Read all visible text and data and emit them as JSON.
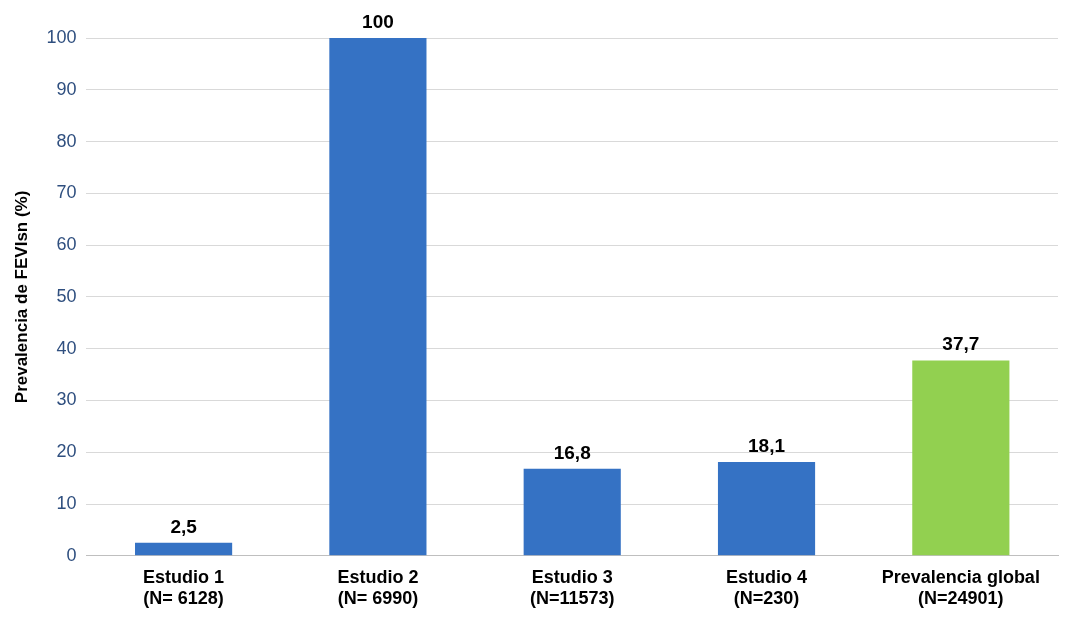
{
  "chart_data": {
    "type": "bar",
    "ylabel": "Prevalencia de FEVIsn (%)",
    "categories": [
      "Estudio 1\n(N= 6128)",
      "Estudio 2\n(N= 6990)",
      "Estudio 3\n(N=11573)",
      "Estudio 4\n(N=230)",
      "Prevalencia global\n(N=24901)"
    ],
    "values": [
      2.5,
      100,
      16.8,
      18.1,
      37.7
    ],
    "value_labels": [
      "2,5",
      "100",
      "16,8",
      "18,1",
      "37,7"
    ],
    "colors": [
      "#3572c4",
      "#3572c4",
      "#3572c4",
      "#3572c4",
      "#92d050"
    ],
    "ylim": [
      0,
      100
    ],
    "yticks": [
      0,
      10,
      20,
      30,
      40,
      50,
      60,
      70,
      80,
      90,
      100
    ],
    "grid": "y",
    "legend": false
  }
}
